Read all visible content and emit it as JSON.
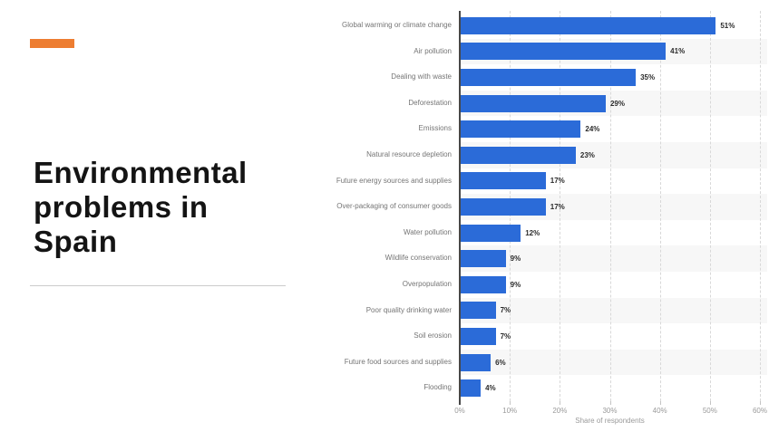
{
  "slide": {
    "title": "Environmental problems in Spain",
    "accent_color": "#ED7D31"
  },
  "chart_data": {
    "type": "bar",
    "orientation": "horizontal",
    "title": "",
    "xlabel": "Share of respondents",
    "ylabel": "",
    "xlim": [
      0,
      60
    ],
    "x_ticks": [
      "0%",
      "10%",
      "20%",
      "30%",
      "40%",
      "50%",
      "60%"
    ],
    "grid": "vertical-dashed",
    "legend": "none",
    "bar_color": "#2b6bd8",
    "stripe_color": "#f7f7f7",
    "categories": [
      "Global warming or climate change",
      "Air pollution",
      "Dealing with waste",
      "Deforestation",
      "Emissions",
      "Natural resource depletion",
      "Future energy sources and supplies",
      "Over-packaging of consumer goods",
      "Water pollution",
      "Wildlife conservation",
      "Overpopulation",
      "Poor quality drinking water",
      "Soil erosion",
      "Future food sources and supplies",
      "Flooding"
    ],
    "values": [
      51,
      41,
      35,
      29,
      24,
      23,
      17,
      17,
      12,
      9,
      9,
      7,
      7,
      6,
      4
    ],
    "value_labels": [
      "51%",
      "41%",
      "35%",
      "29%",
      "24%",
      "23%",
      "17%",
      "17%",
      "12%",
      "9%",
      "9%",
      "7%",
      "7%",
      "6%",
      "4%"
    ]
  }
}
